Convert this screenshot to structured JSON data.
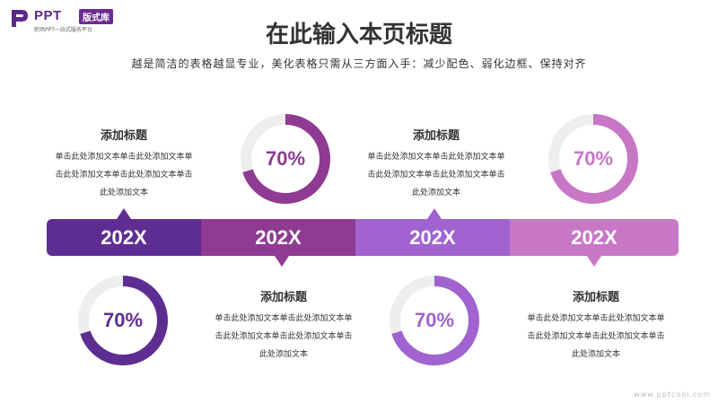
{
  "logo": {
    "text": "PPT",
    "badge": "版式库",
    "subtitle": "职场PPT一站式服务平台"
  },
  "header": {
    "title": "在此输入本页标题",
    "subtitle": "越是简洁的表格越显专业，美化表格只需从三方面入手：减少配色、弱化边框、保持对齐"
  },
  "timeline": [
    {
      "year": "202X",
      "color": "#5e2d91"
    },
    {
      "year": "202X",
      "color": "#8f3a93"
    },
    {
      "year": "202X",
      "color": "#a063cf"
    },
    {
      "year": "202X",
      "color": "#c877c6"
    }
  ],
  "blocks": [
    {
      "title": "添加标题",
      "line1": "单击此处添加文本单击此处添加文本单",
      "line2": "击此处添加文本单击此处添加文本单击",
      "line3": "此处添加文本"
    },
    {
      "title": "添加标题",
      "line1": "单击此处添加文本单击此处添加文本单",
      "line2": "击此处添加文本单击此处添加文本单击",
      "line3": "此处添加文本"
    },
    {
      "title": "添加标题",
      "line1": "单击此处添加文本单击此处添加文本单",
      "line2": "击此处添加文本单击此处添加文本单击",
      "line3": "此处添加文本"
    },
    {
      "title": "添加标题",
      "line1": "单击此处添加文本单击此处添加文本单",
      "line2": "击此处添加文本单击此处添加文本单击",
      "line3": "此处添加文本"
    }
  ],
  "rings": [
    {
      "label": "70%",
      "value": 0.7,
      "color": "#8f3a93"
    },
    {
      "label": "70%",
      "value": 0.7,
      "color": "#c877c6"
    },
    {
      "label": "70%",
      "value": 0.7,
      "color": "#5e2d91"
    },
    {
      "label": "70%",
      "value": 0.7,
      "color": "#a063cf"
    }
  ],
  "watermark": "www.pptcool.com"
}
